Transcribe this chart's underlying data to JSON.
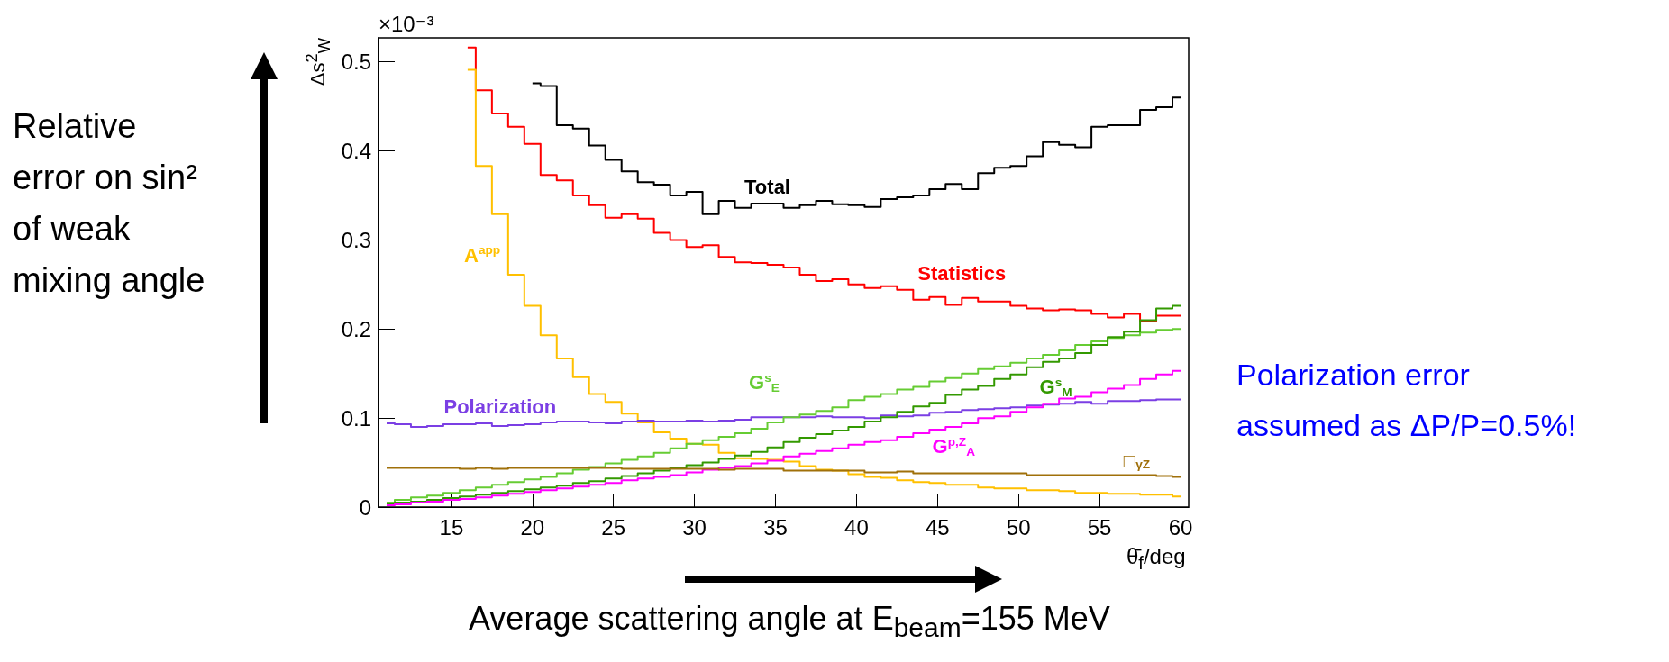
{
  "chart_data": {
    "type": "step",
    "x": [
      11,
      12,
      13,
      14,
      15,
      16,
      17,
      18,
      19,
      20,
      21,
      22,
      23,
      24,
      25,
      26,
      27,
      28,
      29,
      30,
      31,
      32,
      33,
      34,
      35,
      36,
      37,
      38,
      39,
      40,
      41,
      42,
      43,
      44,
      45,
      46,
      47,
      48,
      49,
      50,
      51,
      52,
      53,
      54,
      55,
      56,
      57,
      58,
      59,
      60
    ],
    "xlabel": "θ̄$_{f}$/deg",
    "ylabel": "Δs$^{2}$$_{W}$",
    "annotations": [
      "×10⁻³",
      "Relative error on sin² of weak mixing angle",
      "Average scattering angle at E$_{beam}$=155 MeV",
      "Polarization error assumed as ΔP/P=0.5%!"
    ],
    "series": [
      {
        "name": "Total",
        "color": "#000000",
        "values": [
          null,
          null,
          null,
          null,
          null,
          null,
          null,
          null,
          null,
          0.476,
          0.473,
          0.429,
          0.425,
          0.406,
          0.39,
          0.377,
          0.365,
          0.362,
          0.35,
          0.354,
          0.329,
          0.344,
          0.336,
          0.341,
          0.341,
          0.336,
          0.339,
          0.344,
          0.34,
          0.339,
          0.337,
          0.346,
          0.348,
          0.35,
          0.357,
          0.363,
          0.357,
          0.375,
          0.381,
          0.383,
          0.394,
          0.41,
          0.407,
          0.404,
          0.427,
          0.429,
          0.429,
          0.446,
          0.449,
          0.46
        ]
      },
      {
        "name": "Statistics",
        "color": "#ff0000",
        "values": [
          null,
          null,
          null,
          null,
          null,
          0.516,
          0.468,
          0.442,
          0.427,
          0.408,
          0.373,
          0.367,
          0.35,
          0.339,
          0.325,
          0.329,
          0.324,
          0.308,
          0.3,
          0.292,
          0.294,
          0.281,
          0.275,
          0.274,
          0.272,
          0.269,
          0.261,
          0.254,
          0.256,
          0.25,
          0.246,
          0.248,
          0.244,
          0.233,
          0.236,
          0.227,
          0.235,
          0.231,
          0.231,
          0.226,
          0.223,
          0.221,
          0.222,
          0.221,
          0.217,
          0.213,
          0.217,
          0.209,
          0.215,
          0.215
        ]
      },
      {
        "name": "A$^{app}$",
        "color": "#ffc000",
        "values": [
          null,
          null,
          null,
          null,
          null,
          0.491,
          0.383,
          0.329,
          0.261,
          0.226,
          0.193,
          0.167,
          0.146,
          0.127,
          0.118,
          0.105,
          0.095,
          0.084,
          0.077,
          0.071,
          0.07,
          0.061,
          0.055,
          0.054,
          0.053,
          0.051,
          0.046,
          0.042,
          0.041,
          0.037,
          0.034,
          0.033,
          0.03,
          0.028,
          0.027,
          0.025,
          0.025,
          0.022,
          0.021,
          0.021,
          0.019,
          0.019,
          0.018,
          0.016,
          0.016,
          0.015,
          0.015,
          0.014,
          0.014,
          0.012
        ]
      },
      {
        "name": "Polarization",
        "color": "#7b3fe4",
        "values": [
          0.094,
          0.093,
          0.09,
          0.091,
          0.093,
          0.093,
          0.094,
          0.091,
          0.092,
          0.093,
          0.095,
          0.096,
          0.096,
          0.095,
          0.094,
          0.096,
          0.097,
          0.096,
          0.096,
          0.097,
          0.096,
          0.097,
          0.098,
          0.101,
          0.101,
          0.101,
          0.101,
          0.102,
          0.101,
          0.101,
          0.1,
          0.103,
          0.102,
          0.103,
          0.106,
          0.107,
          0.109,
          0.11,
          0.111,
          0.112,
          0.114,
          0.115,
          0.116,
          0.118,
          0.116,
          0.119,
          0.119,
          0.12,
          0.121,
          0.121
        ]
      },
      {
        "name": "G$^{s}$$_{E}$",
        "color": "#66cc33",
        "values": [
          0.005,
          0.008,
          0.011,
          0.013,
          0.016,
          0.019,
          0.022,
          0.025,
          0.028,
          0.031,
          0.034,
          0.038,
          0.042,
          0.045,
          0.049,
          0.053,
          0.057,
          0.061,
          0.066,
          0.071,
          0.075,
          0.079,
          0.083,
          0.088,
          0.095,
          0.101,
          0.104,
          0.108,
          0.112,
          0.12,
          0.124,
          0.127,
          0.132,
          0.135,
          0.141,
          0.145,
          0.15,
          0.155,
          0.158,
          0.162,
          0.167,
          0.171,
          0.176,
          0.182,
          0.186,
          0.19,
          0.193,
          0.196,
          0.199,
          0.2
        ]
      },
      {
        "name": "G$^{s}$$_{M}$",
        "color": "#339900",
        "values": [
          0.003,
          0.005,
          0.006,
          0.008,
          0.01,
          0.012,
          0.014,
          0.016,
          0.018,
          0.02,
          0.022,
          0.024,
          0.027,
          0.029,
          0.032,
          0.035,
          0.038,
          0.041,
          0.044,
          0.047,
          0.05,
          0.054,
          0.058,
          0.062,
          0.067,
          0.073,
          0.078,
          0.082,
          0.086,
          0.09,
          0.096,
          0.101,
          0.107,
          0.113,
          0.117,
          0.126,
          0.132,
          0.136,
          0.144,
          0.149,
          0.157,
          0.163,
          0.167,
          0.173,
          0.182,
          0.191,
          0.197,
          0.21,
          0.223,
          0.226
        ]
      },
      {
        "name": "G$^{p,Z}$$_{A}$",
        "color": "#ff00ff",
        "values": [
          0.002,
          0.003,
          0.005,
          0.006,
          0.008,
          0.009,
          0.011,
          0.013,
          0.015,
          0.017,
          0.019,
          0.021,
          0.023,
          0.025,
          0.027,
          0.03,
          0.032,
          0.034,
          0.036,
          0.039,
          0.042,
          0.044,
          0.046,
          0.049,
          0.052,
          0.057,
          0.06,
          0.063,
          0.066,
          0.07,
          0.073,
          0.075,
          0.079,
          0.083,
          0.087,
          0.09,
          0.094,
          0.1,
          0.102,
          0.107,
          0.112,
          0.116,
          0.122,
          0.124,
          0.129,
          0.133,
          0.137,
          0.144,
          0.149,
          0.153
        ]
      },
      {
        "name": "□$_{γZ}$",
        "color": "#a0700a",
        "values": [
          0.044,
          0.044,
          0.044,
          0.044,
          0.044,
          0.043,
          0.044,
          0.043,
          0.044,
          0.044,
          0.044,
          0.044,
          0.044,
          0.044,
          0.044,
          0.043,
          0.043,
          0.043,
          0.043,
          0.043,
          0.043,
          0.042,
          0.043,
          0.043,
          0.043,
          0.041,
          0.041,
          0.041,
          0.041,
          0.041,
          0.039,
          0.039,
          0.04,
          0.038,
          0.038,
          0.038,
          0.038,
          0.038,
          0.038,
          0.038,
          0.036,
          0.036,
          0.036,
          0.036,
          0.036,
          0.036,
          0.036,
          0.036,
          0.035,
          0.034
        ]
      }
    ],
    "xlim": [
      10.5,
      60.5
    ],
    "xticks": [
      15,
      20,
      25,
      30,
      35,
      40,
      45,
      50,
      55,
      60
    ],
    "ylim": [
      0,
      0.527
    ],
    "yticks": [
      0,
      0.1,
      0.2,
      0.3,
      0.4,
      0.5
    ],
    "grid": false
  }
}
